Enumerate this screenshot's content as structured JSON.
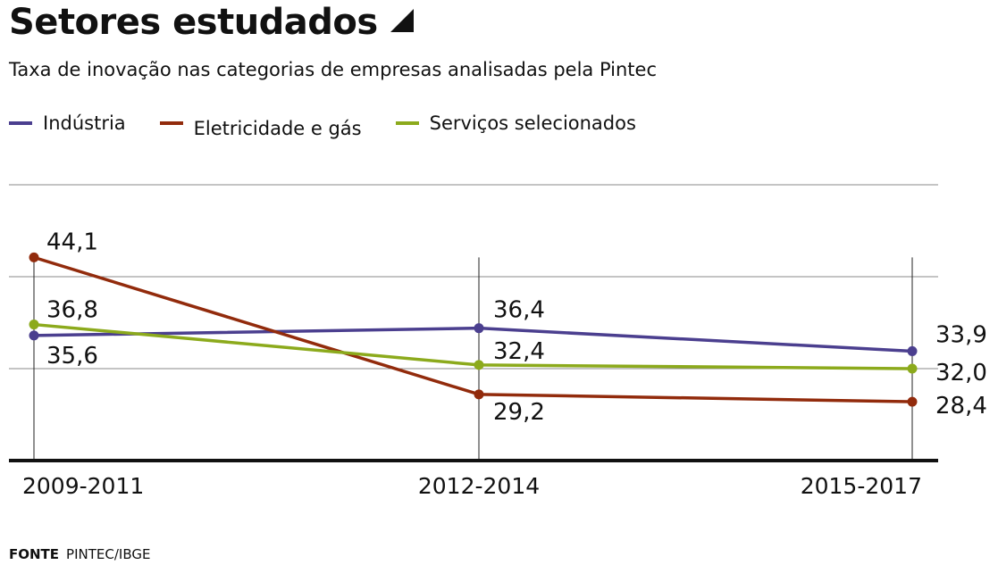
{
  "header": {
    "title": "Setores estudados",
    "subtitle": "Taxa de inovação nas categorias de empresas analisadas pela Pintec"
  },
  "source": {
    "label": "FONTE",
    "text": "PINTEC/IBGE"
  },
  "chart_data": {
    "type": "line",
    "title": "Setores estudados",
    "subtitle": "Taxa de inovação nas categorias de empresas analisadas pela Pintec",
    "categories": [
      "2009-2011",
      "2012-2014",
      "2015-2017"
    ],
    "series": [
      {
        "name": "Indústria",
        "color": "#4b3f8f",
        "values": [
          35.6,
          36.4,
          33.9
        ],
        "labels": [
          "35,6",
          "36,4",
          "33,9"
        ]
      },
      {
        "name": "Eletricidade e gás",
        "color": "#922b0c",
        "values": [
          44.1,
          29.2,
          28.4
        ],
        "labels": [
          "44,1",
          "29,2",
          "28,4"
        ]
      },
      {
        "name": "Serviços selecionados",
        "color": "#8caa1c",
        "values": [
          36.8,
          32.4,
          32.0
        ],
        "labels": [
          "36,8",
          "32,4",
          "32,0"
        ]
      }
    ],
    "ylim": [
      22,
      52
    ],
    "gridlines": [
      32,
      42,
      52
    ],
    "grid": true,
    "legend_position": "top-left"
  }
}
